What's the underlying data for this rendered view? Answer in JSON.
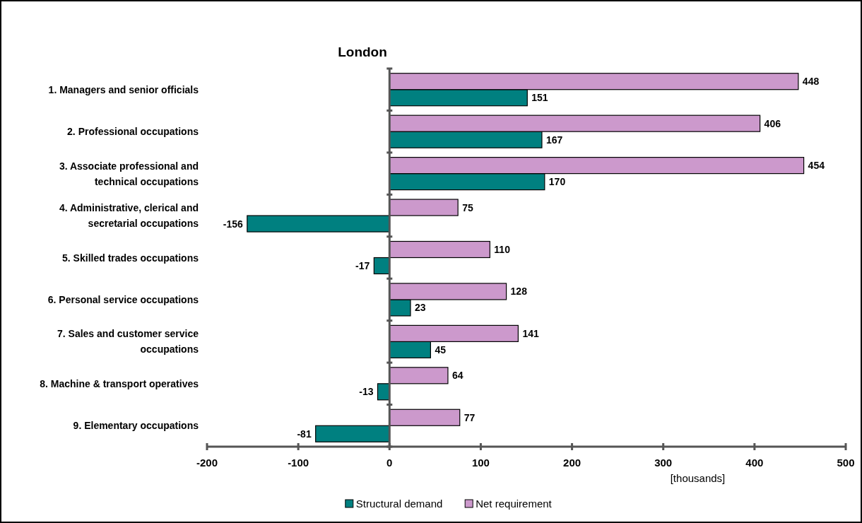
{
  "chart_data": {
    "type": "bar",
    "orientation": "horizontal",
    "title": "London",
    "xlabel": "[thousands]",
    "categories": [
      "1. Managers and senior officials",
      "2. Professional occupations",
      "3. Associate professional and technical occupations",
      "4. Administrative, clerical and secretarial occupations",
      "5. Skilled trades occupations",
      "6. Personal service occupations",
      "7. Sales and customer service occupations",
      "8. Machine & transport operatives",
      "9. Elementary occupations"
    ],
    "series": [
      {
        "name": "Structural demand",
        "color": "#008080",
        "values": [
          151,
          167,
          170,
          -156,
          -17,
          23,
          45,
          -13,
          -81
        ]
      },
      {
        "name": "Net requirement",
        "color": "#cc99cc",
        "values": [
          448,
          406,
          454,
          75,
          110,
          128,
          141,
          64,
          77
        ]
      }
    ],
    "xlim": [
      -200,
      500
    ],
    "xticks": [
      -200,
      -100,
      0,
      100,
      200,
      300,
      400,
      500
    ],
    "data_labels": true,
    "legend": "bottom"
  }
}
